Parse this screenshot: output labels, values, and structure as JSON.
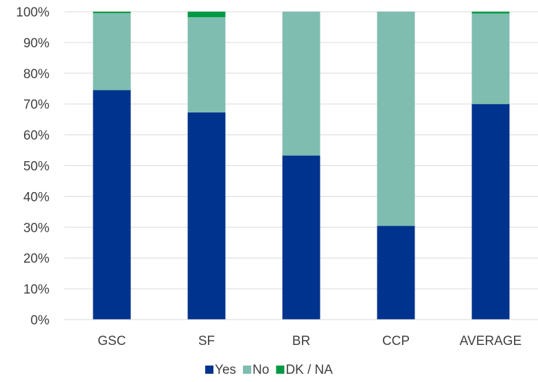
{
  "chart_data": {
    "type": "bar",
    "stacked": true,
    "title": "",
    "categories": [
      "GSC",
      "SF",
      "BR",
      "CCP",
      "AVERAGE"
    ],
    "series": [
      {
        "name": "Yes",
        "color": "#00338D",
        "values": [
          74.5,
          67.3,
          53.3,
          30.4,
          70.0
        ]
      },
      {
        "name": "No",
        "color": "#7FBDB0",
        "values": [
          25.0,
          30.9,
          46.7,
          69.6,
          29.4
        ]
      },
      {
        "name": "DK / NA",
        "color": "#009A44",
        "values": [
          0.5,
          1.8,
          0.0,
          0.0,
          0.6
        ]
      }
    ],
    "y_ticks": [
      "0%",
      "10%",
      "20%",
      "30%",
      "40%",
      "50%",
      "60%",
      "70%",
      "80%",
      "90%",
      "100%"
    ],
    "ylim": [
      0,
      100
    ],
    "grid": true,
    "legend": "bottom"
  }
}
